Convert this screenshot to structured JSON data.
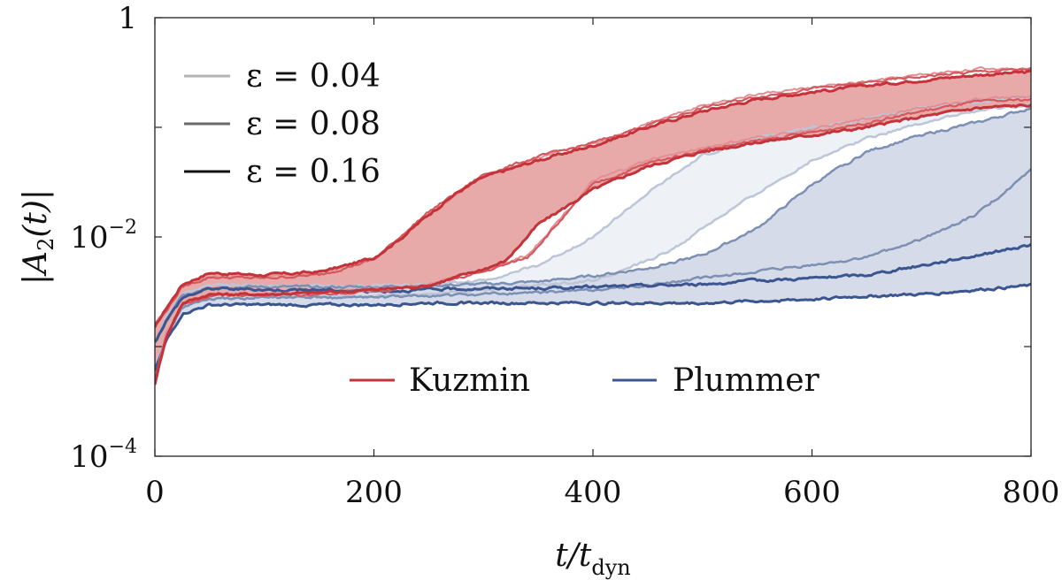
{
  "chart_data": {
    "type": "line",
    "title": "",
    "xlabel": "t/t_dyn",
    "xlabel_main": "t/t",
    "xlabel_sub": "dyn",
    "ylabel": "|A_2(t)|",
    "xlim": [
      0,
      800
    ],
    "ylim": [
      0.0001,
      1
    ],
    "yscale": "log",
    "grid": false,
    "x_ticks": [
      {
        "value": 0,
        "label": "0"
      },
      {
        "value": 200,
        "label": "200"
      },
      {
        "value": 400,
        "label": "400"
      },
      {
        "value": 600,
        "label": "600"
      },
      {
        "value": 800,
        "label": "800"
      }
    ],
    "y_ticks": [
      {
        "value": 1,
        "label": "1",
        "base": "",
        "exp": ""
      },
      {
        "value": 0.01,
        "label": "10^-2",
        "base": "10",
        "exp": "−2"
      },
      {
        "value": 0.0001,
        "label": "10^-4",
        "base": "10",
        "exp": "−4"
      }
    ],
    "y_minor_ticks": [
      0.1,
      0.001
    ],
    "legend_softening": {
      "position": "top-left",
      "entries": [
        {
          "label": "ε = 0.04",
          "color": "#b4b4b4"
        },
        {
          "label": "ε = 0.08",
          "color": "#6a6a6a"
        },
        {
          "label": "ε = 0.16",
          "color": "#111111"
        }
      ]
    },
    "legend_model": {
      "position": "bottom-center",
      "entries": [
        {
          "label": "Kuzmin",
          "color": "#c4323a"
        },
        {
          "label": "Plummer",
          "color": "#3b5590"
        }
      ]
    },
    "colors": {
      "kuzmin_fill": "#e8a9a9",
      "plummer_fill_light": "#eef1f6",
      "plummer_fill_dark": "#d5dbe8"
    },
    "series": [
      {
        "name": "Kuzmin ε=0.16 upper",
        "model": "Kuzmin",
        "epsilon": 0.16,
        "color": "#c4323a",
        "width": 3,
        "x": [
          0,
          10,
          25,
          50,
          100,
          150,
          175,
          200,
          225,
          250,
          275,
          300,
          350,
          400,
          450,
          500,
          550,
          600,
          650,
          700,
          750,
          800
        ],
        "y": [
          0.0015,
          0.0022,
          0.0037,
          0.0047,
          0.0045,
          0.0048,
          0.0055,
          0.0065,
          0.0098,
          0.016,
          0.025,
          0.035,
          0.05,
          0.068,
          0.1,
          0.14,
          0.18,
          0.21,
          0.24,
          0.27,
          0.3,
          0.32
        ]
      },
      {
        "name": "Kuzmin ε=0.16 lower",
        "model": "Kuzmin",
        "epsilon": 0.16,
        "color": "#c4323a",
        "width": 3,
        "x": [
          0,
          10,
          25,
          50,
          100,
          150,
          200,
          250,
          300,
          320,
          350,
          400,
          450,
          500,
          550,
          600,
          650,
          700,
          750,
          800
        ],
        "y": [
          0.00045,
          0.0012,
          0.0025,
          0.003,
          0.003,
          0.0031,
          0.0033,
          0.0036,
          0.0051,
          0.006,
          0.013,
          0.027,
          0.044,
          0.06,
          0.073,
          0.085,
          0.1,
          0.125,
          0.15,
          0.16
        ]
      },
      {
        "name": "Kuzmin ε=0.08 upper",
        "model": "Kuzmin",
        "epsilon": 0.08,
        "color": "#d4595f",
        "width": 2.2,
        "x": [
          0,
          10,
          25,
          50,
          100,
          150,
          200,
          250,
          300,
          350,
          400,
          450,
          500,
          550,
          600,
          650,
          700,
          750,
          800
        ],
        "y": [
          0.0015,
          0.0021,
          0.0035,
          0.0043,
          0.0042,
          0.0045,
          0.0062,
          0.017,
          0.037,
          0.054,
          0.072,
          0.105,
          0.15,
          0.19,
          0.225,
          0.255,
          0.29,
          0.32,
          0.34
        ]
      },
      {
        "name": "Kuzmin ε=0.08 lower",
        "model": "Kuzmin",
        "epsilon": 0.08,
        "color": "#d4595f",
        "width": 2.2,
        "x": [
          0,
          10,
          25,
          50,
          100,
          150,
          200,
          250,
          300,
          340,
          400,
          450,
          500,
          550,
          600,
          650,
          700,
          750,
          800
        ],
        "y": [
          0.0005,
          0.0012,
          0.0024,
          0.0029,
          0.003,
          0.003,
          0.0032,
          0.0036,
          0.0048,
          0.0065,
          0.03,
          0.047,
          0.062,
          0.075,
          0.09,
          0.11,
          0.14,
          0.17,
          0.18
        ]
      },
      {
        "name": "Kuzmin ε=0.04 upper",
        "model": "Kuzmin",
        "epsilon": 0.04,
        "color": "#e38e92",
        "width": 2,
        "x": [
          0,
          10,
          25,
          50,
          100,
          150,
          200,
          250,
          300,
          350,
          400,
          450,
          500,
          550,
          600,
          650,
          700,
          750,
          800
        ],
        "y": [
          0.0016,
          0.0022,
          0.0036,
          0.0044,
          0.0043,
          0.0047,
          0.0064,
          0.016,
          0.036,
          0.052,
          0.07,
          0.11,
          0.16,
          0.2,
          0.23,
          0.26,
          0.3,
          0.34,
          0.35
        ]
      },
      {
        "name": "Kuzmin ε=0.04 lower",
        "model": "Kuzmin",
        "epsilon": 0.04,
        "color": "#e38e92",
        "width": 2,
        "x": [
          0,
          10,
          25,
          50,
          100,
          150,
          200,
          250,
          300,
          340,
          400,
          450,
          500,
          550,
          600,
          650,
          700,
          750,
          800
        ],
        "y": [
          0.0005,
          0.0013,
          0.0025,
          0.003,
          0.003,
          0.0031,
          0.0033,
          0.0037,
          0.005,
          0.0068,
          0.032,
          0.05,
          0.065,
          0.08,
          0.095,
          0.12,
          0.15,
          0.18,
          0.19
        ]
      },
      {
        "name": "Plummer ε=0.04 upper",
        "model": "Plummer",
        "epsilon": 0.04,
        "color": "#bcc6d8",
        "width": 2.5,
        "x": [
          0,
          10,
          25,
          50,
          100,
          150,
          200,
          250,
          300,
          350,
          400,
          450,
          500,
          550,
          600,
          650,
          700,
          750,
          800
        ],
        "y": [
          0.0011,
          0.0018,
          0.003,
          0.0036,
          0.0036,
          0.0036,
          0.0036,
          0.0037,
          0.004,
          0.0055,
          0.01,
          0.025,
          0.055,
          0.08,
          0.1,
          0.12,
          0.15,
          0.17,
          0.19
        ]
      },
      {
        "name": "Plummer ε=0.04 lower",
        "model": "Plummer",
        "epsilon": 0.04,
        "color": "#bcc6d8",
        "width": 2.5,
        "x": [
          0,
          10,
          25,
          50,
          100,
          150,
          200,
          250,
          300,
          350,
          400,
          450,
          480,
          500,
          550,
          600,
          650,
          700,
          750,
          800
        ],
        "y": [
          0.0006,
          0.0013,
          0.0024,
          0.0028,
          0.0029,
          0.0029,
          0.0029,
          0.003,
          0.0033,
          0.0036,
          0.004,
          0.006,
          0.0085,
          0.012,
          0.025,
          0.05,
          0.08,
          0.11,
          0.14,
          0.16
        ]
      },
      {
        "name": "Plummer ε=0.08 upper",
        "model": "Plummer",
        "epsilon": 0.08,
        "color": "#7d8fb2",
        "width": 2.5,
        "x": [
          0,
          10,
          25,
          50,
          100,
          150,
          200,
          250,
          300,
          350,
          400,
          450,
          500,
          550,
          600,
          650,
          700,
          750,
          800
        ],
        "y": [
          0.0011,
          0.0017,
          0.0029,
          0.0035,
          0.0035,
          0.0035,
          0.0035,
          0.0036,
          0.0037,
          0.0039,
          0.0044,
          0.0052,
          0.0068,
          0.012,
          0.03,
          0.06,
          0.085,
          0.11,
          0.15
        ]
      },
      {
        "name": "Plummer ε=0.08 lower",
        "model": "Plummer",
        "epsilon": 0.08,
        "color": "#7d8fb2",
        "width": 2.5,
        "x": [
          0,
          10,
          25,
          50,
          100,
          150,
          200,
          250,
          300,
          350,
          400,
          450,
          500,
          550,
          600,
          650,
          700,
          750,
          800
        ],
        "y": [
          0.0006,
          0.0012,
          0.0023,
          0.0027,
          0.0028,
          0.0028,
          0.0028,
          0.0029,
          0.003,
          0.0031,
          0.0033,
          0.0036,
          0.0042,
          0.0048,
          0.0055,
          0.0065,
          0.0095,
          0.016,
          0.04
        ]
      },
      {
        "name": "Plummer ε=0.16 upper",
        "model": "Plummer",
        "epsilon": 0.16,
        "color": "#3b5590",
        "width": 3,
        "x": [
          0,
          10,
          25,
          50,
          100,
          150,
          200,
          250,
          300,
          350,
          400,
          450,
          500,
          550,
          600,
          650,
          700,
          750,
          800
        ],
        "y": [
          0.0011,
          0.0017,
          0.0028,
          0.0034,
          0.0033,
          0.0033,
          0.0032,
          0.0033,
          0.0034,
          0.0034,
          0.0035,
          0.0036,
          0.0037,
          0.004,
          0.0042,
          0.0045,
          0.0055,
          0.0068,
          0.0085
        ]
      },
      {
        "name": "Plummer ε=0.16 lower",
        "model": "Plummer",
        "epsilon": 0.16,
        "color": "#3b5590",
        "width": 3,
        "x": [
          0,
          10,
          25,
          50,
          100,
          150,
          200,
          250,
          300,
          350,
          400,
          450,
          500,
          550,
          600,
          650,
          700,
          750,
          800
        ],
        "y": [
          0.0006,
          0.0011,
          0.002,
          0.0024,
          0.0024,
          0.0024,
          0.0024,
          0.0025,
          0.0025,
          0.0025,
          0.0025,
          0.0025,
          0.0025,
          0.0026,
          0.0027,
          0.0029,
          0.003,
          0.0033,
          0.0036
        ]
      }
    ],
    "bands": [
      {
        "name": "Plummer ε=0.04 band",
        "color_key": "plummer_fill_light",
        "upper": "Plummer ε=0.04 upper",
        "lower": "Plummer ε=0.04 lower"
      },
      {
        "name": "Plummer ε=0.16/0.08 band",
        "color_key": "plummer_fill_dark",
        "upper": "Plummer ε=0.08 upper",
        "lower": "Plummer ε=0.16 lower"
      },
      {
        "name": "Kuzmin band",
        "color_key": "kuzmin_fill",
        "upper": "Kuzmin ε=0.16 upper",
        "lower": "Kuzmin ε=0.16 lower"
      }
    ]
  }
}
